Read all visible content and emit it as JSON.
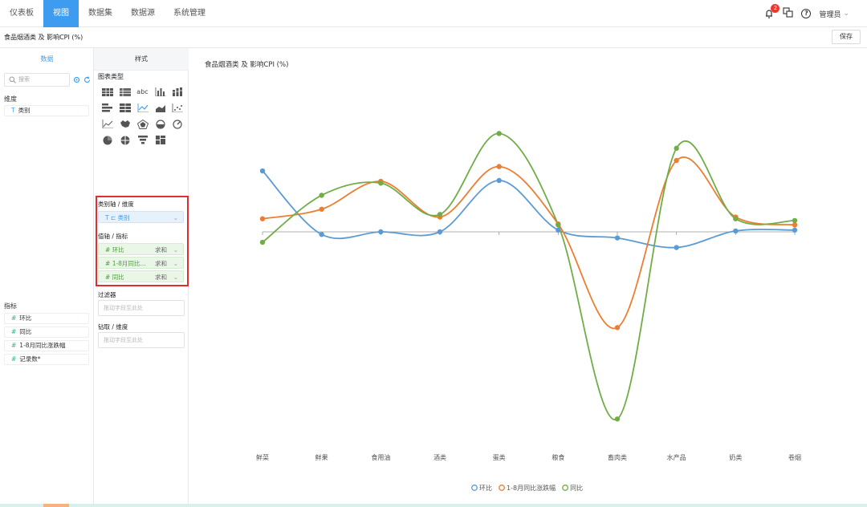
{
  "nav": {
    "items": [
      "仪表板",
      "视图",
      "数据集",
      "数据源",
      "系统管理"
    ],
    "active_index": 1,
    "notification_count": "2",
    "user_label": "管理员"
  },
  "report": {
    "title": "食品烟酒类 及 影响CPI (%)",
    "save_label": "保存"
  },
  "data_panel": {
    "tab_label": "数据",
    "search_placeholder": "搜索",
    "dimension_label": "维度",
    "dimensions": [
      {
        "prefix": "T",
        "label": "类别"
      }
    ],
    "measure_label": "指标",
    "measures": [
      {
        "prefix": "#",
        "label": "环比"
      },
      {
        "prefix": "#",
        "label": "同比"
      },
      {
        "prefix": "#",
        "label": "1-8月同比涨跌幅"
      },
      {
        "prefix": "#",
        "label": "记录数*"
      }
    ]
  },
  "style_panel": {
    "tab_label": "样式",
    "chart_type_label": "图表类型",
    "chart_type_icons": [
      "table-icon",
      "table-summary-icon",
      "text-abc-icon",
      "column-chart-icon",
      "stacked-column-icon",
      "bar-chart-icon",
      "stacked-bar-icon",
      "line-chart-icon",
      "area-chart-icon",
      "scatter-chart-icon",
      "line-area-icon",
      "map-icon",
      "radar-icon",
      "funnel-pie-icon",
      "gauge-icon",
      "pie-chart-icon",
      "treemap-icon",
      "funnel-icon",
      "card-icon"
    ],
    "selected_chart_type": "line-chart-icon",
    "category_axis_label": "类别轴 / 维度",
    "category_slot": {
      "prefix": "T",
      "label": "类别"
    },
    "value_axis_label": "值轴 / 指标",
    "value_slots": [
      {
        "prefix": "#",
        "label": "环比",
        "agg": "求和"
      },
      {
        "prefix": "#",
        "label": "1-8月同比...",
        "agg": "求和"
      },
      {
        "prefix": "#",
        "label": "同比",
        "agg": "求和"
      }
    ],
    "filter_label": "过滤器",
    "filter_placeholder": "拖动字段至此处",
    "drill_label": "钻取 / 维度",
    "drill_placeholder": "拖动字段至此处"
  },
  "chart_data": {
    "type": "line",
    "title": "食品烟酒类 及 影响CPI (%)",
    "smooth": true,
    "grid": false,
    "legend_position": "bottom",
    "categories": [
      "鲜菜",
      "鲜果",
      "食用油",
      "酒类",
      "蛋类",
      "粮食",
      "畜肉类",
      "水产品",
      "奶类",
      "卷烟"
    ],
    "ylim": [
      -12,
      12
    ],
    "series": [
      {
        "name": "环比",
        "color": "#5b9bd5",
        "values": [
          7.0,
          -0.3,
          0.0,
          0.0,
          5.9,
          0.2,
          -0.7,
          -1.8,
          0.1,
          0.2
        ]
      },
      {
        "name": "1-8月同比涨跌幅",
        "color": "#ed7d31",
        "values": [
          1.5,
          2.6,
          5.8,
          1.7,
          7.5,
          0.9,
          -11.0,
          8.2,
          1.7,
          0.8
        ]
      },
      {
        "name": "同比",
        "color": "#70ad47",
        "values": [
          -1.2,
          4.2,
          5.6,
          2.0,
          11.3,
          0.8,
          -21.5,
          9.6,
          1.5,
          1.3
        ]
      }
    ]
  }
}
